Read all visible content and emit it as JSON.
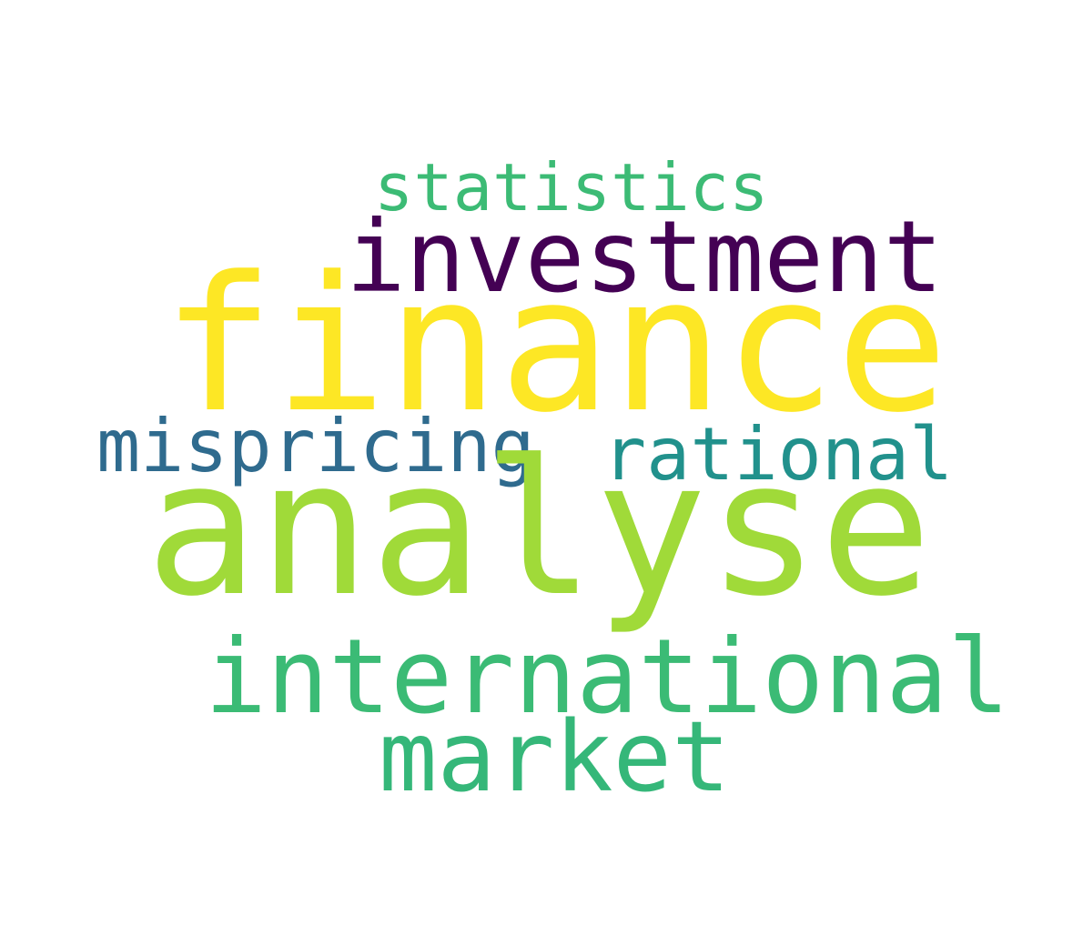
{
  "words": [
    {
      "text": "statistics",
      "color": "#3cbb75"
    },
    {
      "text": "investment",
      "color": "#440154"
    },
    {
      "text": "finance",
      "color": "#fde725"
    },
    {
      "text": "mispricing",
      "color": "#2f6b8e"
    },
    {
      "text": "rational",
      "color": "#21918c"
    },
    {
      "text": "analyse",
      "color": "#a0da39"
    },
    {
      "text": "international",
      "color": "#3bbb75"
    },
    {
      "text": "market",
      "color": "#35b779"
    }
  ]
}
